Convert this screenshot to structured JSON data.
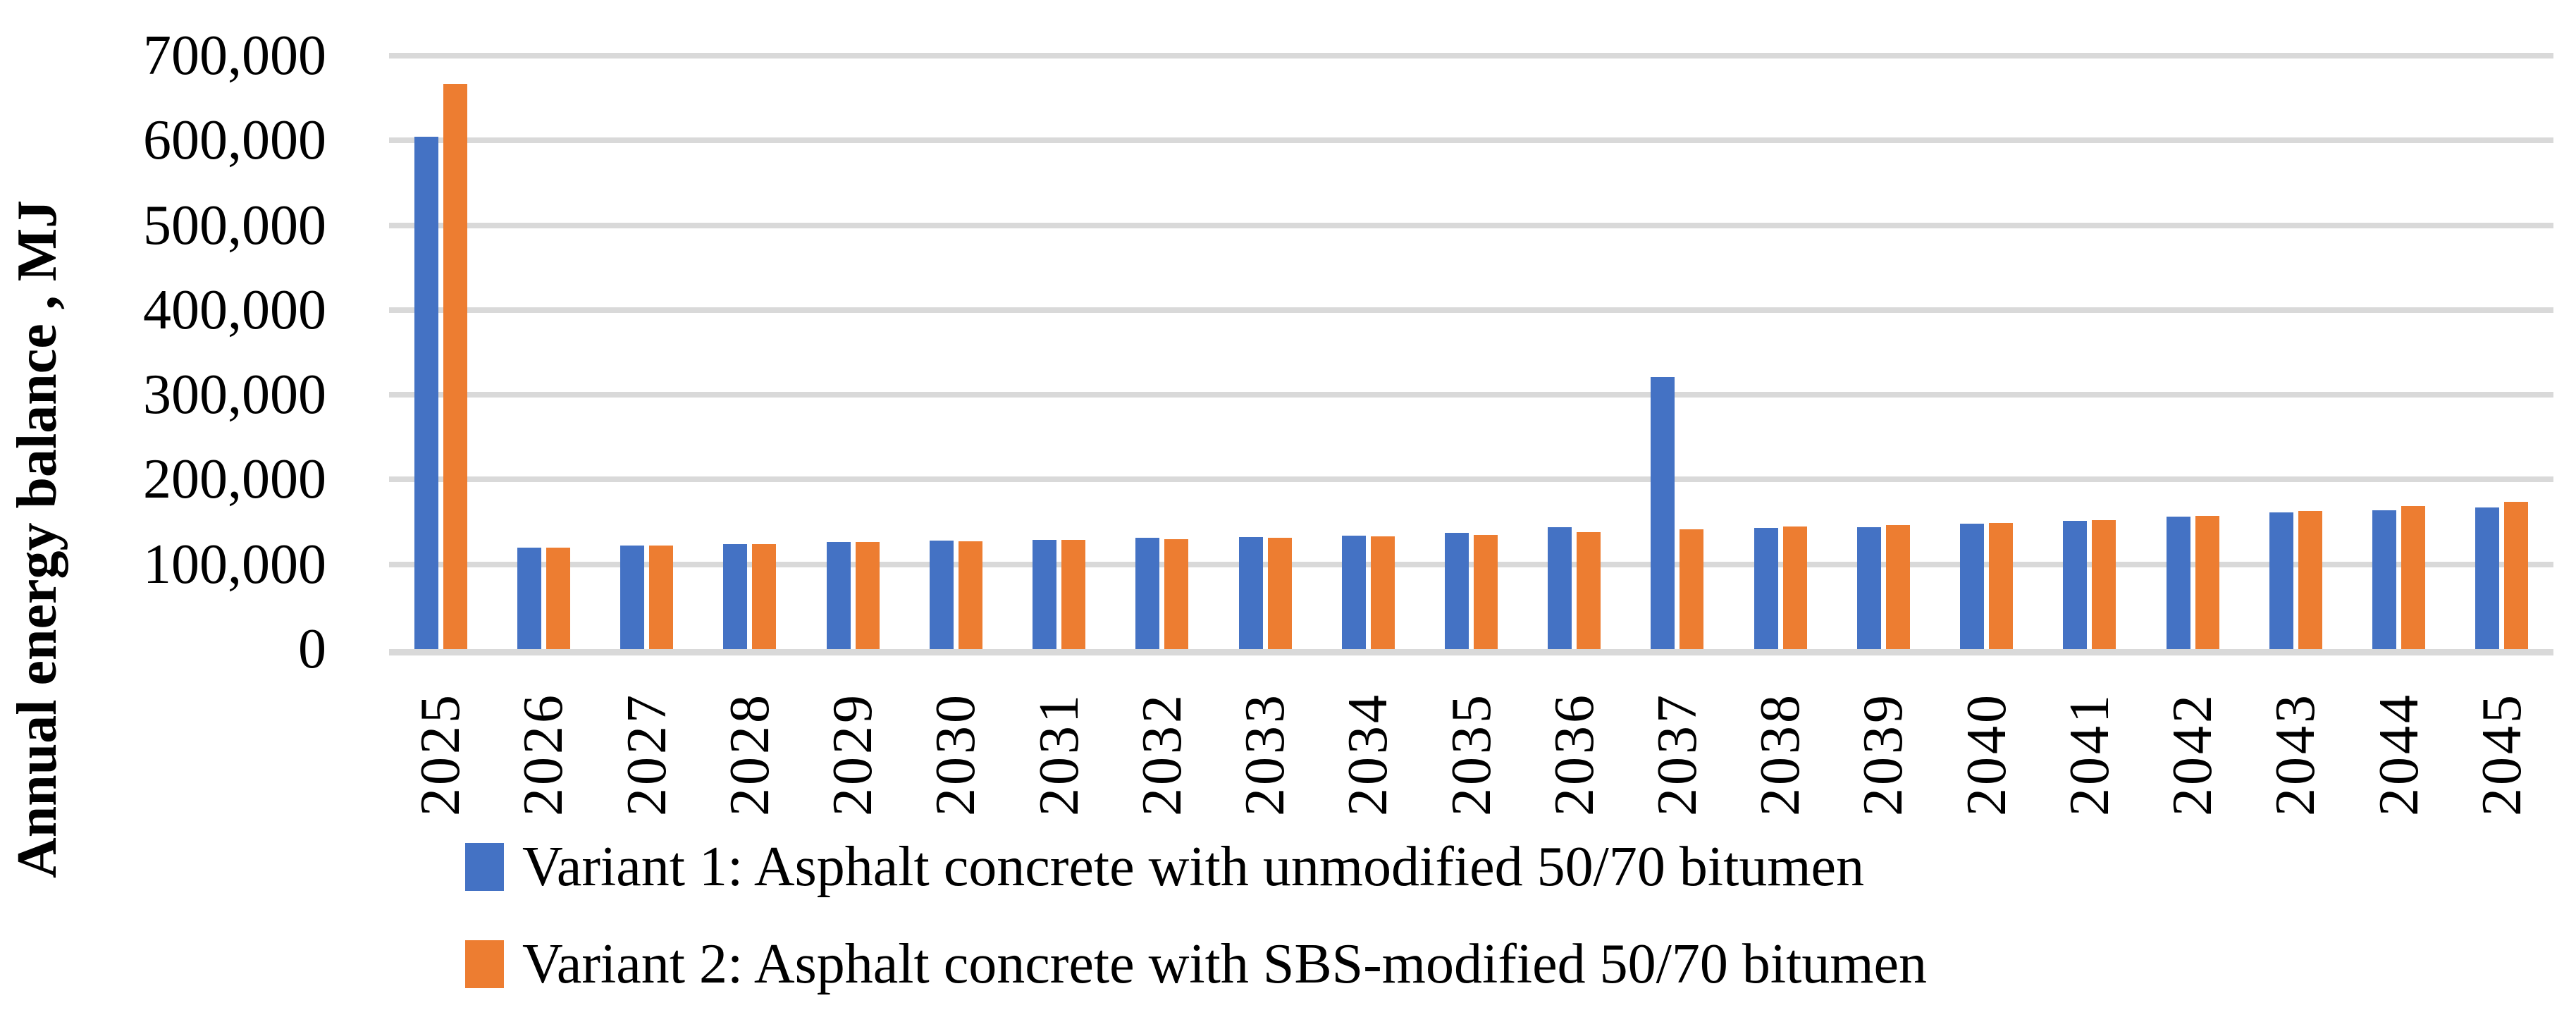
{
  "chart_data": {
    "type": "bar",
    "title": "",
    "xlabel": "",
    "ylabel": "Annual energy balance , MJ",
    "categories": [
      "2025",
      "2026",
      "2027",
      "2028",
      "2029",
      "2030",
      "2031",
      "2032",
      "2033",
      "2034",
      "2035",
      "2036",
      "2037",
      "2038",
      "2039",
      "2040",
      "2041",
      "2042",
      "2043",
      "2044",
      "2045"
    ],
    "series": [
      {
        "name": "Variant 1: Asphalt concrete with unmodified 50/70 bitumen",
        "color": "#4472C4",
        "values": [
          604000,
          120000,
          122000,
          124000,
          126000,
          128000,
          129000,
          131000,
          132000,
          134000,
          137000,
          144000,
          321000,
          143000,
          144000,
          148000,
          151000,
          156000,
          161000,
          164000,
          167000
        ]
      },
      {
        "name": "Variant 2: Asphalt concrete with SBS-modified 50/70 bitumen",
        "color": "#ED7D31",
        "values": [
          667000,
          120000,
          122000,
          124000,
          126000,
          127000,
          129000,
          130000,
          131000,
          133000,
          135000,
          138000,
          141000,
          145000,
          146000,
          149000,
          152000,
          157000,
          163000,
          169000,
          174000
        ]
      }
    ],
    "ylim": [
      0,
      700000
    ],
    "ytick_interval": 100000,
    "ytick_labels": [
      "0",
      "100,000",
      "200,000",
      "300,000",
      "400,000",
      "500,000",
      "600,000",
      "700,000"
    ],
    "grid": "horizontal-only",
    "gridline_color": "#D9D9D9",
    "axis_text_color": "#000000",
    "legend_position": "bottom-left",
    "x_labels_rotation_deg": 90
  }
}
